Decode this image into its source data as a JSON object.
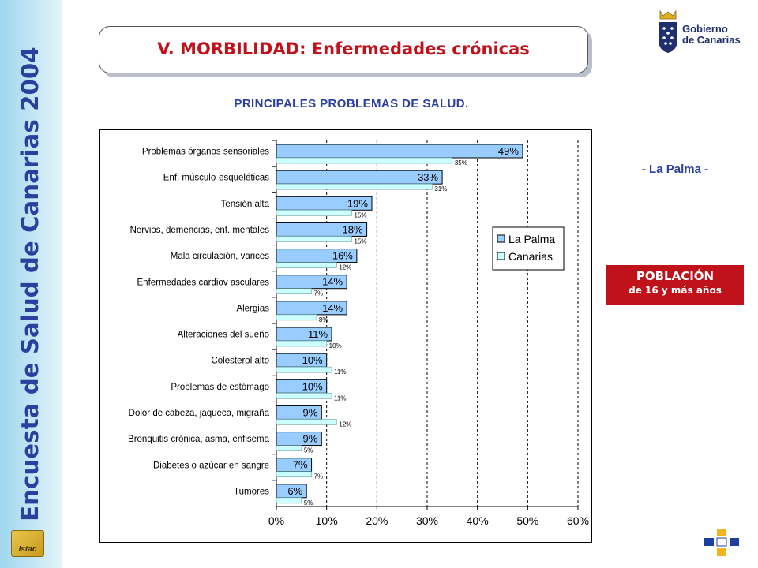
{
  "sidebar": {
    "title": "Encuesta de Salud de Canarias 2004",
    "istac_label": "Istac"
  },
  "header": {
    "title": "V. MORBILIDAD: Enfermedades crónicas"
  },
  "logo": {
    "line1": "Gobierno",
    "line2": "de Canarias"
  },
  "subtitle": "PRINCIPALES PROBLEMAS DE SALUD.",
  "region": "- La Palma -",
  "population": {
    "line1": "POBLACIÓN",
    "line2": "de 16 y más años"
  },
  "colors": {
    "la_palma": "#99ccff",
    "canarias": "#ccffff",
    "title_red": "#c0121b",
    "navy": "#2a3f9e"
  },
  "chart_data": {
    "type": "bar",
    "orientation": "horizontal",
    "categories": [
      "Problemas órganos sensoriales",
      "Enf. músculo-esqueléticas",
      "Tensión alta",
      "Nervios, demencias, enf. mentales",
      "Mala circulación, varices",
      "Enfermedades cardiov asculares",
      "Alergias",
      "Alteraciones del sueño",
      "Colesterol alto",
      "Problemas de estómago",
      "Dolor de cabeza, jaqueca, migraña",
      "Bronquitis crónica, asma, enfisema",
      "Diabetes o azúcar en sangre",
      "Tumores"
    ],
    "series": [
      {
        "name": "La Palma",
        "values": [
          49,
          33,
          19,
          18,
          16,
          14,
          14,
          11,
          10,
          10,
          9,
          9,
          7,
          6
        ]
      },
      {
        "name": "Canarias",
        "values": [
          35,
          31,
          15,
          15,
          12,
          7,
          8,
          10,
          11,
          11,
          12,
          5,
          7,
          5
        ]
      }
    ],
    "xlim": [
      0,
      60
    ],
    "xticks": [
      0,
      10,
      20,
      30,
      40,
      50,
      60
    ],
    "tick_suffix": "%",
    "grid": "vertical dashed",
    "legend_position": "right"
  }
}
